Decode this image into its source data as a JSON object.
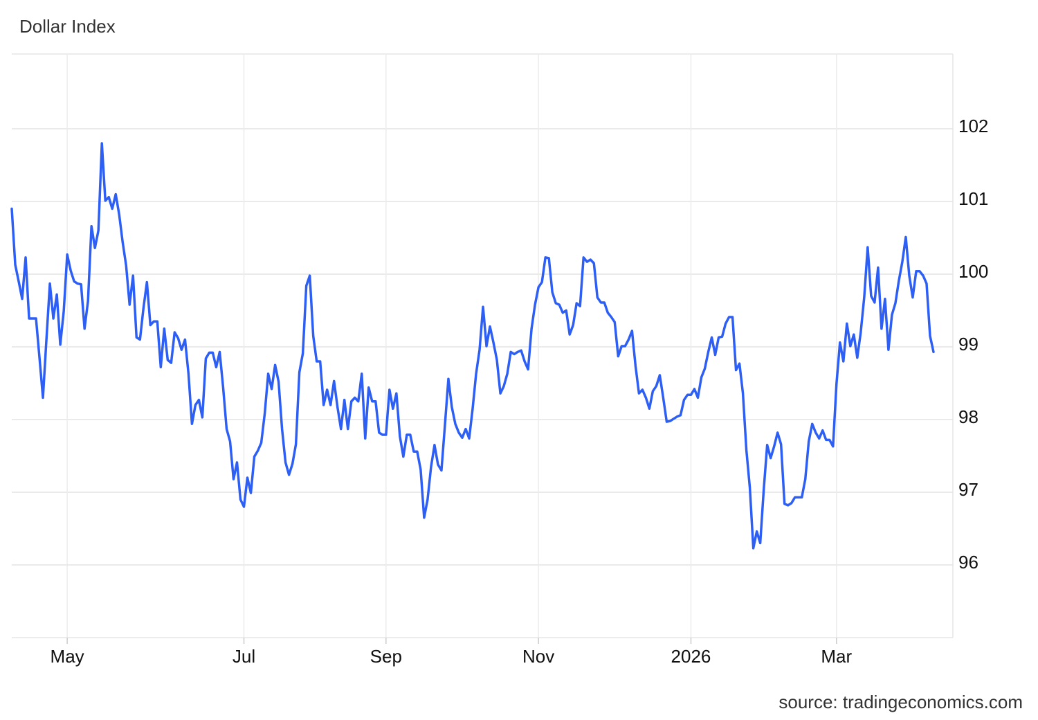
{
  "chart_data": {
    "type": "line",
    "title": "Dollar Index",
    "source": "source: tradingeconomics.com",
    "categories": [
      null,
      null,
      null,
      null,
      null,
      null,
      null,
      null,
      null,
      null,
      null,
      null,
      null,
      null,
      null,
      null,
      "May",
      null,
      null,
      null,
      null,
      null,
      null,
      null,
      null,
      null,
      null,
      null,
      null,
      null,
      null,
      null,
      null,
      null,
      null,
      null,
      null,
      null,
      null,
      null,
      null,
      null,
      null,
      null,
      null,
      null,
      null,
      null,
      null,
      null,
      null,
      null,
      null,
      null,
      null,
      null,
      null,
      null,
      null,
      null,
      null,
      null,
      null,
      null,
      null,
      null,
      null,
      "Jul",
      null,
      null,
      null,
      null,
      null,
      null,
      null,
      null,
      null,
      null,
      null,
      null,
      null,
      null,
      null,
      null,
      null,
      null,
      null,
      null,
      null,
      null,
      null,
      null,
      null,
      null,
      null,
      null,
      null,
      null,
      null,
      null,
      null,
      null,
      null,
      null,
      null,
      null,
      null,
      null,
      "Sep",
      null,
      null,
      null,
      null,
      null,
      null,
      null,
      null,
      null,
      null,
      null,
      null,
      null,
      null,
      null,
      null,
      null,
      null,
      null,
      null,
      null,
      null,
      null,
      null,
      null,
      null,
      null,
      null,
      null,
      null,
      null,
      null,
      null,
      null,
      null,
      null,
      null,
      null,
      null,
      null,
      null,
      null,
      null,
      "Nov",
      null,
      null,
      null,
      null,
      null,
      null,
      null,
      null,
      null,
      null,
      null,
      null,
      null,
      null,
      null,
      null,
      null,
      null,
      null,
      null,
      null,
      null,
      null,
      null,
      null,
      null,
      null,
      null,
      null,
      null,
      null,
      null,
      null,
      null,
      null,
      null,
      null,
      null,
      null,
      null,
      null,
      null,
      null,
      "2026",
      null,
      null,
      null,
      null,
      null,
      null,
      null,
      null,
      null,
      null,
      null,
      null,
      null,
      null,
      null,
      null,
      null,
      null,
      null,
      null,
      null,
      null,
      null,
      null,
      null,
      null,
      null,
      null,
      null,
      null,
      null,
      null,
      null,
      null,
      null,
      null,
      null,
      null,
      null,
      null,
      null,
      "Mar",
      null,
      null,
      null,
      null,
      null,
      null,
      null,
      null,
      null,
      null,
      null,
      null,
      null,
      null,
      null,
      null,
      null,
      null,
      null,
      null,
      null,
      null,
      null,
      null,
      null,
      null,
      null,
      null
    ],
    "series": [
      {
        "name": "Dollar Index",
        "color": "#2e5ff5",
        "values": [
          100.9,
          100.13,
          99.9,
          99.66,
          100.23,
          99.39,
          99.39,
          99.39,
          98.85,
          98.3,
          99.1,
          99.87,
          99.39,
          99.72,
          99.03,
          99.49,
          100.27,
          100.05,
          99.9,
          99.87,
          99.86,
          99.25,
          99.63,
          100.66,
          100.36,
          100.6,
          101.8,
          101.01,
          101.06,
          100.9,
          101.1,
          100.82,
          100.44,
          100.12,
          99.58,
          99.98,
          99.13,
          99.1,
          99.53,
          99.89,
          99.3,
          99.35,
          99.35,
          98.72,
          99.25,
          98.82,
          98.78,
          99.2,
          99.12,
          98.96,
          99.1,
          98.63,
          97.94,
          98.2,
          98.27,
          98.03,
          98.84,
          98.92,
          98.92,
          98.72,
          98.93,
          98.44,
          97.87,
          97.7,
          97.18,
          97.41,
          96.9,
          96.8,
          97.2,
          96.99,
          97.49,
          97.57,
          97.68,
          98.08,
          98.63,
          98.42,
          98.75,
          98.52,
          97.87,
          97.41,
          97.24,
          97.39,
          97.66,
          98.65,
          98.91,
          99.84,
          99.98,
          99.15,
          98.8,
          98.8,
          98.2,
          98.41,
          98.2,
          98.53,
          98.17,
          97.87,
          98.27,
          97.87,
          98.25,
          98.3,
          98.25,
          98.63,
          97.74,
          98.44,
          98.25,
          98.25,
          97.82,
          97.79,
          97.79,
          98.41,
          98.15,
          98.36,
          97.77,
          97.49,
          97.79,
          97.79,
          97.56,
          97.56,
          97.31,
          96.65,
          96.9,
          97.35,
          97.65,
          97.38,
          97.3,
          97.92,
          98.56,
          98.17,
          97.94,
          97.82,
          97.75,
          97.87,
          97.74,
          98.15,
          98.63,
          98.96,
          99.55,
          99.01,
          99.28,
          99.06,
          98.82,
          98.36,
          98.46,
          98.63,
          98.93,
          98.9,
          98.93,
          98.95,
          98.8,
          98.69,
          99.25,
          99.58,
          99.82,
          99.89,
          100.23,
          100.22,
          99.75,
          99.6,
          99.58,
          99.47,
          99.5,
          99.17,
          99.3,
          99.6,
          99.56,
          100.23,
          100.17,
          100.2,
          100.15,
          99.68,
          99.61,
          99.61,
          99.47,
          99.41,
          99.34,
          98.87,
          99.01,
          99.01,
          99.1,
          99.22,
          98.74,
          98.36,
          98.41,
          98.3,
          98.15,
          98.39,
          98.46,
          98.61,
          98.3,
          97.97,
          97.98,
          98.01,
          98.04,
          98.06,
          98.27,
          98.34,
          98.34,
          98.42,
          98.3,
          98.58,
          98.7,
          98.93,
          99.13,
          98.89,
          99.13,
          99.14,
          99.32,
          99.41,
          99.41,
          98.68,
          98.77,
          98.36,
          97.58,
          97.06,
          96.23,
          96.46,
          96.3,
          97.03,
          97.65,
          97.47,
          97.63,
          97.82,
          97.66,
          96.84,
          96.82,
          96.85,
          96.93,
          96.93,
          96.93,
          97.18,
          97.7,
          97.94,
          97.82,
          97.74,
          97.85,
          97.72,
          97.72,
          97.63,
          98.49,
          99.06,
          98.8,
          99.32,
          99.01,
          99.17,
          98.85,
          99.2,
          99.68,
          100.37,
          99.7,
          99.61,
          100.09,
          99.25,
          99.66,
          98.96,
          99.44,
          99.6,
          99.91,
          100.17,
          100.51,
          99.98,
          99.68,
          100.04,
          100.04,
          99.98,
          99.87,
          99.15,
          98.93
        ]
      }
    ],
    "ylim": [
      95,
      103
    ],
    "yticks": [
      96,
      97,
      98,
      99,
      100,
      101,
      102
    ],
    "grid": true
  }
}
